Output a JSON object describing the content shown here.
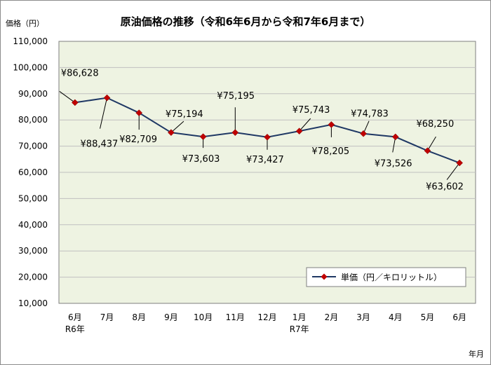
{
  "chart_data": {
    "type": "line",
    "title": "原油価格の推移（令和6年6月から令和7年6月まで）",
    "ylabel": "価格（円）",
    "xlabel": "年月",
    "ylim": [
      10000,
      110000
    ],
    "yticks": [
      "10,000",
      "20,000",
      "30,000",
      "40,000",
      "50,000",
      "60,000",
      "70,000",
      "80,000",
      "90,000",
      "100,000",
      "110,000"
    ],
    "categories": [
      "6月",
      "7月",
      "8月",
      "9月",
      "10月",
      "11月",
      "12月",
      "1月",
      "2月",
      "3月",
      "4月",
      "5月",
      "6月"
    ],
    "category_sublabels": [
      "R6年",
      "",
      "",
      "",
      "",
      "",
      "",
      "R7年",
      "",
      "",
      "",
      "",
      ""
    ],
    "series": [
      {
        "name": "単価（円／キロリットル）",
        "values": [
          86628,
          88437,
          82709,
          75194,
          73603,
          75195,
          73427,
          75743,
          78205,
          74783,
          73526,
          68250,
          63602
        ],
        "labels": [
          "¥86,628",
          "¥88,437",
          "¥82,709",
          "¥75,194",
          "¥73,603",
          "¥75,195",
          "¥73,427",
          "¥75,743",
          "¥78,205",
          "¥74,783",
          "¥73,526",
          "¥68,250",
          "¥63,602"
        ]
      }
    ],
    "grid": true,
    "legend": "bottom-right",
    "colors": {
      "line": "#1f3864",
      "marker": "#c00000",
      "plot_bg": "#eef3e2",
      "grid": "#c0c0c0"
    }
  }
}
